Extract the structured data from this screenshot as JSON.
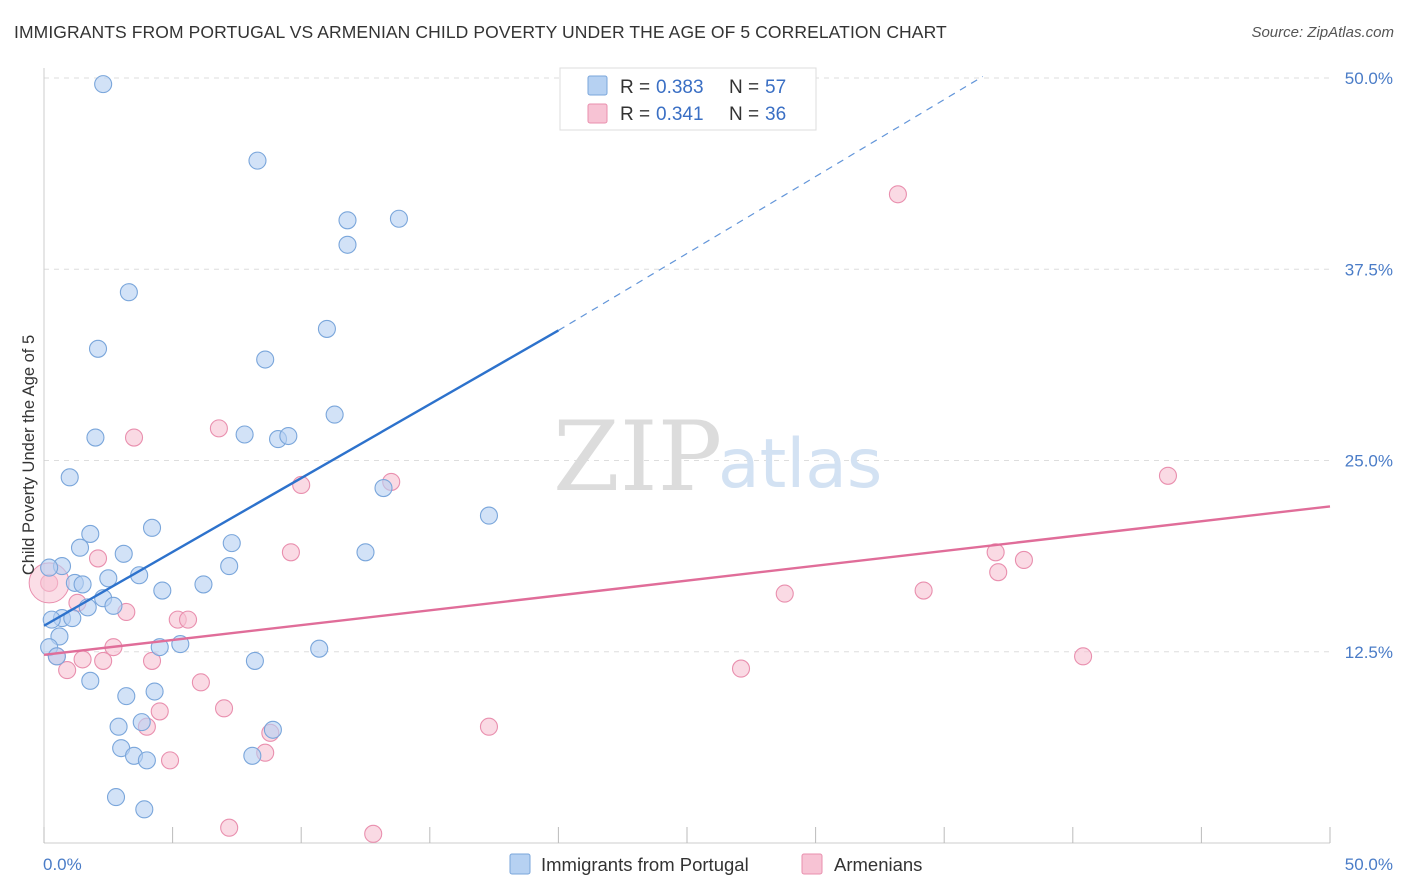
{
  "title": "IMMIGRANTS FROM PORTUGAL VS ARMENIAN CHILD POVERTY UNDER THE AGE OF 5 CORRELATION CHART",
  "source": "Source: ZipAtlas.com",
  "watermark": {
    "zip": "ZIP",
    "atlas": "atlas"
  },
  "colors": {
    "blue_fill": "#b6d1f2",
    "blue_stroke": "#7aa6db",
    "blue_line": "#2d72cc",
    "pink_fill": "#f7c3d4",
    "pink_stroke": "#e98fae",
    "pink_line": "#e06d99",
    "grid": "#dddddd",
    "tick_text": "#4a7cc7"
  },
  "legend": {
    "rows": [
      {
        "r_label": "R =",
        "r_value": "0.383",
        "n_label": "N =",
        "n_value": "57"
      },
      {
        "r_label": "R =",
        "r_value": "0.341",
        "n_label": "N =",
        "n_value": "36"
      }
    ]
  },
  "chart_data": {
    "type": "scatter",
    "title": "IMMIGRANTS FROM PORTUGAL VS ARMENIAN CHILD POVERTY UNDER THE AGE OF 5 CORRELATION CHART",
    "xlabel": "",
    "ylabel": "Child Poverty Under the Age of 5",
    "xlim": [
      0,
      50
    ],
    "ylim": [
      0,
      50
    ],
    "x_tick_labels": [
      "0.0%",
      "50.0%"
    ],
    "y_tick_labels": [
      "12.5%",
      "25.0%",
      "37.5%",
      "50.0%"
    ],
    "y_ticks": [
      12.5,
      25.0,
      37.5,
      50.0
    ],
    "grid": true,
    "legend_placement": "top-center and bottom",
    "series": [
      {
        "name": "Immigrants from Portugal",
        "color": "#b6d1f2",
        "r": 0.383,
        "n": 57,
        "trend": {
          "x0": 0.0,
          "y0": 14.2,
          "x1": 20.0,
          "y1": 33.5,
          "dashed_to_x": 36.5,
          "dashed_to_y": 50.1
        },
        "points": [
          [
            2.3,
            49.6
          ],
          [
            8.3,
            44.6
          ],
          [
            11.8,
            40.7
          ],
          [
            13.8,
            40.8
          ],
          [
            11.8,
            39.1
          ],
          [
            3.3,
            36.0
          ],
          [
            2.1,
            32.3
          ],
          [
            11.0,
            33.6
          ],
          [
            8.6,
            31.6
          ],
          [
            11.3,
            28.0
          ],
          [
            2.0,
            26.5
          ],
          [
            7.8,
            26.7
          ],
          [
            9.1,
            26.4
          ],
          [
            9.5,
            26.6
          ],
          [
            1.0,
            23.9
          ],
          [
            13.2,
            23.2
          ],
          [
            17.3,
            21.4
          ],
          [
            4.2,
            20.6
          ],
          [
            1.8,
            20.2
          ],
          [
            7.3,
            19.6
          ],
          [
            1.4,
            19.3
          ],
          [
            3.1,
            18.9
          ],
          [
            12.5,
            19.0
          ],
          [
            0.7,
            18.1
          ],
          [
            7.2,
            18.1
          ],
          [
            0.2,
            18.0
          ],
          [
            2.5,
            17.3
          ],
          [
            3.7,
            17.5
          ],
          [
            1.2,
            17.0
          ],
          [
            1.5,
            16.9
          ],
          [
            6.2,
            16.9
          ],
          [
            4.6,
            16.5
          ],
          [
            2.3,
            16.0
          ],
          [
            2.7,
            15.5
          ],
          [
            1.7,
            15.4
          ],
          [
            0.7,
            14.7
          ],
          [
            1.1,
            14.7
          ],
          [
            0.3,
            14.6
          ],
          [
            0.6,
            13.5
          ],
          [
            4.5,
            12.8
          ],
          [
            5.3,
            13.0
          ],
          [
            10.7,
            12.7
          ],
          [
            0.2,
            12.8
          ],
          [
            0.5,
            12.2
          ],
          [
            8.2,
            11.9
          ],
          [
            1.8,
            10.6
          ],
          [
            3.2,
            9.6
          ],
          [
            4.3,
            9.9
          ],
          [
            2.9,
            7.6
          ],
          [
            3.8,
            7.9
          ],
          [
            8.9,
            7.4
          ],
          [
            3.0,
            6.2
          ],
          [
            3.5,
            5.7
          ],
          [
            4.0,
            5.4
          ],
          [
            8.1,
            5.7
          ],
          [
            2.8,
            3.0
          ],
          [
            3.9,
            2.2
          ]
        ]
      },
      {
        "name": "Armenians",
        "color": "#f7c3d4",
        "r": 0.341,
        "n": 36,
        "trend": {
          "x0": 0.0,
          "y0": 12.3,
          "x1": 50.0,
          "y1": 22.0
        },
        "points": [
          [
            33.2,
            42.4
          ],
          [
            43.7,
            24.0
          ],
          [
            3.5,
            26.5
          ],
          [
            6.8,
            27.1
          ],
          [
            13.5,
            23.6
          ],
          [
            10.0,
            23.4
          ],
          [
            9.6,
            19.0
          ],
          [
            2.1,
            18.6
          ],
          [
            0.2,
            17.0
          ],
          [
            37.0,
            19.0
          ],
          [
            38.1,
            18.5
          ],
          [
            37.1,
            17.7
          ],
          [
            34.2,
            16.5
          ],
          [
            28.8,
            16.3
          ],
          [
            1.3,
            15.7
          ],
          [
            3.2,
            15.1
          ],
          [
            5.2,
            14.6
          ],
          [
            5.6,
            14.6
          ],
          [
            2.7,
            12.8
          ],
          [
            0.5,
            12.2
          ],
          [
            1.5,
            12.0
          ],
          [
            2.3,
            11.9
          ],
          [
            4.2,
            11.9
          ],
          [
            0.9,
            11.3
          ],
          [
            27.1,
            11.4
          ],
          [
            40.4,
            12.2
          ],
          [
            6.1,
            10.5
          ],
          [
            7.0,
            8.8
          ],
          [
            4.5,
            8.6
          ],
          [
            4.0,
            7.6
          ],
          [
            17.3,
            7.6
          ],
          [
            8.8,
            7.2
          ],
          [
            8.6,
            5.9
          ],
          [
            4.9,
            5.4
          ],
          [
            7.2,
            1.0
          ],
          [
            12.8,
            0.6
          ]
        ]
      }
    ]
  }
}
